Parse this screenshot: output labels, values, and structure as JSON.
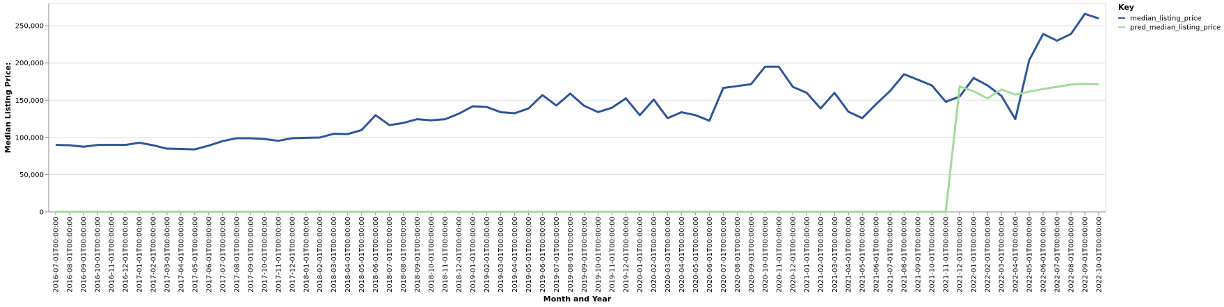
{
  "chart_data": {
    "type": "line",
    "title": "",
    "xlabel": "Month and Year",
    "ylabel": "Median Listing Price:",
    "ylim": [
      0,
      280000
    ],
    "yticks": [
      0,
      50000,
      100000,
      150000,
      200000,
      250000
    ],
    "ytick_labels": [
      "0",
      "50,000",
      "100,000",
      "150,000",
      "200,000",
      "250,000"
    ],
    "grid": true,
    "legend": {
      "title": "Key",
      "position": "top-right"
    },
    "categories": [
      "2016-07-01T00:00:00",
      "2016-08-01T00:00:00",
      "2016-09-01T00:00:00",
      "2016-10-01T00:00:00",
      "2016-11-01T00:00:00",
      "2016-12-01T00:00:00",
      "2017-01-01T00:00:00",
      "2017-02-01T00:00:00",
      "2017-03-01T00:00:00",
      "2017-04-01T00:00:00",
      "2017-05-01T00:00:00",
      "2017-06-01T00:00:00",
      "2017-07-01T00:00:00",
      "2017-08-01T00:00:00",
      "2017-09-01T00:00:00",
      "2017-10-01T00:00:00",
      "2017-11-01T00:00:00",
      "2017-12-01T00:00:00",
      "2018-01-01T00:00:00",
      "2018-02-01T00:00:00",
      "2018-03-01T00:00:00",
      "2018-04-01T00:00:00",
      "2018-05-01T00:00:00",
      "2018-06-01T00:00:00",
      "2018-07-01T00:00:00",
      "2018-08-01T00:00:00",
      "2018-09-01T00:00:00",
      "2018-10-01T00:00:00",
      "2018-11-01T00:00:00",
      "2018-12-01T00:00:00",
      "2019-01-01T00:00:00",
      "2019-02-01T00:00:00",
      "2019-03-01T00:00:00",
      "2019-04-01T00:00:00",
      "2019-05-01T00:00:00",
      "2019-06-01T00:00:00",
      "2019-07-01T00:00:00",
      "2019-08-01T00:00:00",
      "2019-09-01T00:00:00",
      "2019-10-01T00:00:00",
      "2019-11-01T00:00:00",
      "2019-12-01T00:00:00",
      "2020-01-01T00:00:00",
      "2020-02-01T00:00:00",
      "2020-03-01T00:00:00",
      "2020-04-01T00:00:00",
      "2020-05-01T00:00:00",
      "2020-06-01T00:00:00",
      "2020-07-01T00:00:00",
      "2020-08-01T00:00:00",
      "2020-09-01T00:00:00",
      "2020-10-01T00:00:00",
      "2020-11-01T00:00:00",
      "2020-12-01T00:00:00",
      "2021-01-01T00:00:00",
      "2021-02-01T00:00:00",
      "2021-03-01T00:00:00",
      "2021-04-01T00:00:00",
      "2021-05-01T00:00:00",
      "2021-06-01T00:00:00",
      "2021-07-01T00:00:00",
      "2021-08-01T00:00:00",
      "2021-09-01T00:00:00",
      "2021-10-01T00:00:00",
      "2021-11-01T00:00:00",
      "2021-12-01T00:00:00",
      "2022-01-01T00:00:00",
      "2022-02-01T00:00:00",
      "2022-03-01T00:00:00",
      "2022-04-01T00:00:00",
      "2022-05-01T00:00:00",
      "2022-06-01T00:00:00",
      "2022-07-01T00:00:00",
      "2022-08-01T00:00:00",
      "2022-09-01T00:00:00",
      "2022-10-01T00:00:00"
    ],
    "series": [
      {
        "name": "median_listing_price",
        "color": "#2c559e",
        "values": [
          90000,
          89500,
          87500,
          89900,
          89900,
          89900,
          92900,
          89500,
          84900,
          84500,
          83900,
          89000,
          95000,
          98900,
          98900,
          97900,
          95500,
          98900,
          99500,
          99900,
          104900,
          104500,
          109900,
          129900,
          116500,
          119500,
          124500,
          123000,
          124500,
          132000,
          141900,
          140900,
          133900,
          132500,
          138900,
          156900,
          142900,
          158900,
          142500,
          134000,
          139900,
          152500,
          129900,
          151000,
          125900,
          133900,
          129900,
          122500,
          166500,
          169000,
          171500,
          194900,
          194900,
          168000,
          159900,
          138900,
          159900,
          134500,
          125900,
          144900,
          162500,
          184900,
          177500,
          169900,
          147900,
          155000,
          179900,
          169900,
          155900,
          124500,
          203900,
          239000,
          230000,
          239000,
          266000,
          259900
        ]
      },
      {
        "name": "pred_median_listing_price",
        "color": "#a3da9b",
        "values": [
          0,
          0,
          0,
          0,
          0,
          0,
          0,
          0,
          0,
          0,
          0,
          0,
          0,
          0,
          0,
          0,
          0,
          0,
          0,
          0,
          0,
          0,
          0,
          0,
          0,
          0,
          0,
          0,
          0,
          0,
          0,
          0,
          0,
          0,
          0,
          0,
          0,
          0,
          0,
          0,
          0,
          0,
          0,
          0,
          0,
          0,
          0,
          0,
          0,
          0,
          0,
          0,
          0,
          0,
          0,
          0,
          0,
          0,
          0,
          0,
          0,
          0,
          0,
          0,
          0,
          168500,
          162000,
          152500,
          164500,
          157500,
          161500,
          165000,
          168000,
          171000,
          172000,
          171500
        ]
      }
    ]
  }
}
